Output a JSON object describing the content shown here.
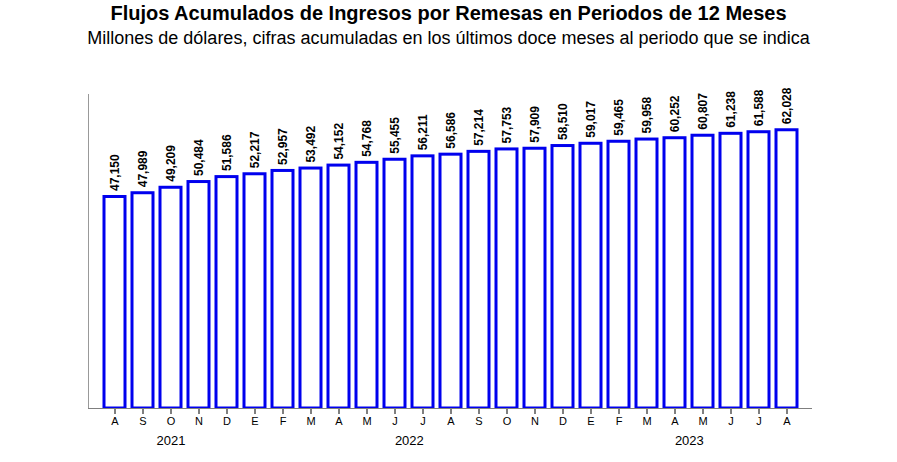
{
  "chart_data": {
    "type": "bar",
    "title": "Flujos Acumulados de Ingresos por Remesas en Periodos de 12 Meses",
    "subtitle": "Millones de dólares, cifras acumuladas en los últimos doce meses al periodo que se indica",
    "categories": [
      "A",
      "S",
      "O",
      "N",
      "D",
      "E",
      "F",
      "M",
      "A",
      "M",
      "J",
      "J",
      "A",
      "S",
      "O",
      "N",
      "D",
      "E",
      "F",
      "M",
      "A",
      "M",
      "J",
      "J",
      "A"
    ],
    "groups": [
      "2021",
      "2021",
      "2021",
      "2021",
      "2021",
      "2022",
      "2022",
      "2022",
      "2022",
      "2022",
      "2022",
      "2022",
      "2022",
      "2022",
      "2022",
      "2022",
      "2022",
      "2023",
      "2023",
      "2023",
      "2023",
      "2023",
      "2023",
      "2023",
      "2023"
    ],
    "values": [
      47150,
      47989,
      49209,
      50484,
      51586,
      52217,
      52957,
      53492,
      54152,
      54768,
      55455,
      56211,
      56586,
      57214,
      57753,
      57909,
      58510,
      59017,
      59465,
      59958,
      60252,
      60807,
      61238,
      61588,
      62028
    ],
    "value_labels": [
      "47,150",
      "47,989",
      "49,209",
      "50,484",
      "51,586",
      "52,217",
      "52,957",
      "53,492",
      "54,152",
      "54,768",
      "55,455",
      "56,211",
      "56,586",
      "57,214",
      "57,753",
      "57,909",
      "58,510",
      "59,017",
      "59,465",
      "59,958",
      "60,252",
      "60,807",
      "61,238",
      "61,588",
      "62,028"
    ],
    "color": "#0000ee",
    "ylim": [
      0,
      70000
    ],
    "yticks": [],
    "tick_labels": "x",
    "grid": false,
    "data_labels": true
  }
}
